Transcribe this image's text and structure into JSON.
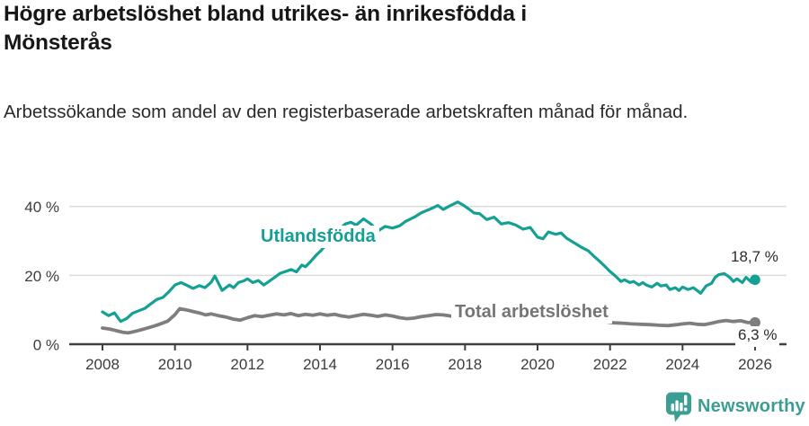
{
  "header": {
    "title": "Högre arbetslöshet bland utrikes- än inrikesfödda i Mönsterås",
    "subtitle": "Arbetssökande som andel av den registerbaserade arbetskraften månad för månad."
  },
  "footer": {
    "brand": "Newsworthy",
    "brand_color": "#3b9e93",
    "logo_icon": "bar-chart-speech-bubble-icon"
  },
  "chart_data": {
    "type": "line",
    "title": "Högre arbetslöshet bland utrikes- än inrikesfödda i Mönsterås",
    "subtitle": "Arbetssökande som andel av den registerbaserade arbetskraften månad för månad.",
    "unit": "%",
    "grid": true,
    "x_axis": {
      "ticks": [
        2008,
        2010,
        2012,
        2014,
        2016,
        2018,
        2020,
        2022,
        2024,
        2026
      ],
      "range": [
        2007.1,
        2026.9
      ]
    },
    "y_axis": {
      "ticks": [
        {
          "value": 0,
          "label": "0 %"
        },
        {
          "value": 20,
          "label": "20 %"
        },
        {
          "value": 40,
          "label": "40 %"
        }
      ],
      "range": [
        0,
        45
      ]
    },
    "colors": {
      "axis": "#404040",
      "grid": "#dcdcdc",
      "tick_text": "#3c3c3c"
    },
    "series": [
      {
        "id": "utlandsfodda",
        "name": "Utlandsfödda",
        "color": "#14a094",
        "end_label": "18,7 %",
        "end_value": 18.7,
        "points": [
          [
            2008.0,
            9.4
          ],
          [
            2008.17,
            8.3
          ],
          [
            2008.33,
            9.1
          ],
          [
            2008.5,
            6.6
          ],
          [
            2008.67,
            7.5
          ],
          [
            2008.83,
            9.0
          ],
          [
            2009.0,
            9.7
          ],
          [
            2009.17,
            10.4
          ],
          [
            2009.33,
            11.7
          ],
          [
            2009.5,
            13.0
          ],
          [
            2009.67,
            13.6
          ],
          [
            2009.83,
            15.2
          ],
          [
            2010.0,
            17.2
          ],
          [
            2010.17,
            17.9
          ],
          [
            2010.33,
            17.1
          ],
          [
            2010.5,
            16.2
          ],
          [
            2010.67,
            17.0
          ],
          [
            2010.83,
            16.4
          ],
          [
            2011.0,
            18.0
          ],
          [
            2011.1,
            19.8
          ],
          [
            2011.3,
            15.6
          ],
          [
            2011.5,
            17.2
          ],
          [
            2011.62,
            16.4
          ],
          [
            2011.75,
            17.9
          ],
          [
            2011.9,
            18.4
          ],
          [
            2012.0,
            19.0
          ],
          [
            2012.15,
            17.9
          ],
          [
            2012.3,
            18.5
          ],
          [
            2012.45,
            17.2
          ],
          [
            2012.6,
            18.3
          ],
          [
            2012.75,
            19.4
          ],
          [
            2012.9,
            20.6
          ],
          [
            2013.1,
            21.3
          ],
          [
            2013.2,
            21.7
          ],
          [
            2013.35,
            21.0
          ],
          [
            2013.5,
            23.0
          ],
          [
            2013.6,
            22.5
          ],
          [
            2013.75,
            24.1
          ],
          [
            2013.9,
            25.9
          ],
          [
            2014.0,
            26.9
          ],
          [
            2014.2,
            29.2
          ],
          [
            2014.4,
            31.6
          ],
          [
            2014.55,
            33.6
          ],
          [
            2014.7,
            34.9
          ],
          [
            2014.85,
            35.4
          ],
          [
            2015.0,
            34.6
          ],
          [
            2015.2,
            36.4
          ],
          [
            2015.4,
            34.9
          ],
          [
            2015.6,
            32.9
          ],
          [
            2015.8,
            34.2
          ],
          [
            2016.0,
            33.7
          ],
          [
            2016.2,
            34.4
          ],
          [
            2016.35,
            35.6
          ],
          [
            2016.6,
            36.9
          ],
          [
            2016.8,
            38.2
          ],
          [
            2017.1,
            39.5
          ],
          [
            2017.25,
            40.3
          ],
          [
            2017.4,
            39.1
          ],
          [
            2017.55,
            40.0
          ],
          [
            2017.8,
            41.3
          ],
          [
            2017.95,
            40.4
          ],
          [
            2018.1,
            39.3
          ],
          [
            2018.25,
            38.1
          ],
          [
            2018.4,
            37.9
          ],
          [
            2018.6,
            36.2
          ],
          [
            2018.8,
            36.9
          ],
          [
            2019.0,
            34.9
          ],
          [
            2019.2,
            35.3
          ],
          [
            2019.4,
            34.6
          ],
          [
            2019.6,
            33.4
          ],
          [
            2019.8,
            33.9
          ],
          [
            2020.0,
            31.1
          ],
          [
            2020.15,
            30.6
          ],
          [
            2020.3,
            32.6
          ],
          [
            2020.5,
            31.9
          ],
          [
            2020.65,
            32.3
          ],
          [
            2020.8,
            30.8
          ],
          [
            2021.0,
            29.5
          ],
          [
            2021.2,
            28.2
          ],
          [
            2021.4,
            27.1
          ],
          [
            2021.55,
            25.6
          ],
          [
            2021.7,
            24.2
          ],
          [
            2021.85,
            22.7
          ],
          [
            2022.0,
            21.1
          ],
          [
            2022.15,
            19.8
          ],
          [
            2022.3,
            18.2
          ],
          [
            2022.4,
            18.7
          ],
          [
            2022.55,
            17.9
          ],
          [
            2022.65,
            18.2
          ],
          [
            2022.8,
            17.2
          ],
          [
            2022.9,
            17.9
          ],
          [
            2023.0,
            17.2
          ],
          [
            2023.15,
            16.6
          ],
          [
            2023.3,
            17.7
          ],
          [
            2023.4,
            16.9
          ],
          [
            2023.55,
            17.2
          ],
          [
            2023.65,
            15.9
          ],
          [
            2023.8,
            16.4
          ],
          [
            2023.9,
            15.6
          ],
          [
            2024.0,
            16.6
          ],
          [
            2024.15,
            15.9
          ],
          [
            2024.3,
            16.4
          ],
          [
            2024.4,
            15.6
          ],
          [
            2024.5,
            14.8
          ],
          [
            2024.65,
            16.9
          ],
          [
            2024.8,
            17.7
          ],
          [
            2024.9,
            19.4
          ],
          [
            2025.0,
            20.2
          ],
          [
            2025.15,
            20.5
          ],
          [
            2025.3,
            19.4
          ],
          [
            2025.4,
            18.2
          ],
          [
            2025.5,
            19.0
          ],
          [
            2025.65,
            17.9
          ],
          [
            2025.75,
            19.4
          ],
          [
            2025.9,
            18.0
          ],
          [
            2026.0,
            18.7
          ]
        ]
      },
      {
        "id": "total",
        "name": "Total arbetslöshet",
        "color": "#7e7e7e",
        "end_label": "6,3 %",
        "end_value": 6.3,
        "points": [
          [
            2008.0,
            4.7
          ],
          [
            2008.2,
            4.4
          ],
          [
            2008.4,
            3.9
          ],
          [
            2008.55,
            3.5
          ],
          [
            2008.7,
            3.3
          ],
          [
            2008.85,
            3.6
          ],
          [
            2009.0,
            4.0
          ],
          [
            2009.2,
            4.6
          ],
          [
            2009.4,
            5.2
          ],
          [
            2009.6,
            5.9
          ],
          [
            2009.8,
            6.7
          ],
          [
            2010.0,
            8.6
          ],
          [
            2010.13,
            10.3
          ],
          [
            2010.3,
            10.0
          ],
          [
            2010.5,
            9.5
          ],
          [
            2010.7,
            9.0
          ],
          [
            2010.85,
            8.5
          ],
          [
            2011.0,
            8.8
          ],
          [
            2011.2,
            8.3
          ],
          [
            2011.4,
            7.9
          ],
          [
            2011.6,
            7.3
          ],
          [
            2011.8,
            7.0
          ],
          [
            2012.0,
            7.7
          ],
          [
            2012.2,
            8.3
          ],
          [
            2012.4,
            8.0
          ],
          [
            2012.6,
            8.4
          ],
          [
            2012.8,
            8.8
          ],
          [
            2013.0,
            8.5
          ],
          [
            2013.2,
            8.9
          ],
          [
            2013.4,
            8.3
          ],
          [
            2013.6,
            8.7
          ],
          [
            2013.8,
            8.4
          ],
          [
            2014.0,
            8.8
          ],
          [
            2014.2,
            8.4
          ],
          [
            2014.4,
            8.7
          ],
          [
            2014.6,
            8.2
          ],
          [
            2014.8,
            7.9
          ],
          [
            2015.0,
            8.3
          ],
          [
            2015.2,
            8.7
          ],
          [
            2015.4,
            8.4
          ],
          [
            2015.6,
            8.1
          ],
          [
            2015.8,
            8.5
          ],
          [
            2016.0,
            8.2
          ],
          [
            2016.2,
            7.7
          ],
          [
            2016.4,
            7.4
          ],
          [
            2016.6,
            7.6
          ],
          [
            2016.8,
            8.0
          ],
          [
            2017.0,
            8.3
          ],
          [
            2017.2,
            8.6
          ],
          [
            2017.4,
            8.5
          ],
          [
            2017.6,
            8.2
          ],
          [
            2017.8,
            7.9
          ],
          [
            2018.0,
            7.7
          ],
          [
            2018.3,
            7.9
          ],
          [
            2018.6,
            8.1
          ],
          [
            2018.9,
            7.8
          ],
          [
            2019.2,
            7.5
          ],
          [
            2019.5,
            7.2
          ],
          [
            2019.8,
            7.4
          ],
          [
            2020.1,
            8.1
          ],
          [
            2020.4,
            8.9
          ],
          [
            2020.7,
            8.6
          ],
          [
            2021.0,
            8.2
          ],
          [
            2021.3,
            7.6
          ],
          [
            2021.6,
            7.0
          ],
          [
            2021.9,
            6.5
          ],
          [
            2022.1,
            6.2
          ],
          [
            2022.35,
            6.1
          ],
          [
            2022.6,
            5.9
          ],
          [
            2022.85,
            5.8
          ],
          [
            2023.1,
            5.7
          ],
          [
            2023.35,
            5.5
          ],
          [
            2023.6,
            5.4
          ],
          [
            2023.85,
            5.7
          ],
          [
            2024.0,
            5.9
          ],
          [
            2024.2,
            6.1
          ],
          [
            2024.4,
            5.8
          ],
          [
            2024.6,
            5.7
          ],
          [
            2024.8,
            6.1
          ],
          [
            2025.0,
            6.6
          ],
          [
            2025.2,
            6.9
          ],
          [
            2025.4,
            6.6
          ],
          [
            2025.6,
            6.8
          ],
          [
            2025.8,
            6.3
          ],
          [
            2026.0,
            6.3
          ]
        ]
      }
    ]
  }
}
